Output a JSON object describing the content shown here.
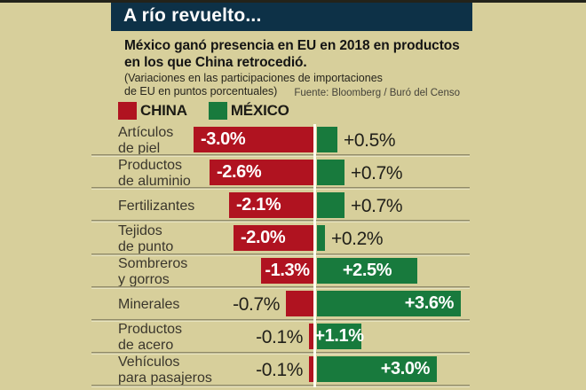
{
  "header": {
    "title": "A río revuelto..."
  },
  "intro": {
    "subtitle": "México ganó presencia en EU en 2018 en productos\nen los que China retrocedió.",
    "note": "(Variaciones en las participaciones de importaciones\nde EU en puntos porcentuales)",
    "source": "Fuente: Bloomberg / Buró del Censo"
  },
  "legend": {
    "items": [
      {
        "label": "CHINA",
        "color": "#b01320"
      },
      {
        "label": "MÉXICO",
        "color": "#187a3d"
      }
    ]
  },
  "colors": {
    "background": "#d7cf9b",
    "header_bar": "#0d3147",
    "china": "#b01320",
    "mexico": "#187a3d",
    "axis_line": "#fdfcee"
  },
  "chart_data": {
    "type": "bar",
    "subtype": "diverging-horizontal",
    "title": "A río revuelto...",
    "unit": "puntos porcentuales",
    "series_names": [
      "CHINA",
      "MÉXICO"
    ],
    "categories": [
      "Artículos de piel",
      "Productos de aluminio",
      "Fertilizantes",
      "Tejidos de punto",
      "Sombreros y gorros",
      "Minerales",
      "Productos de acero",
      "Vehículos para pasajeros"
    ],
    "rows": [
      {
        "category": "Artículos\nde piel",
        "china": -3.0,
        "china_label": "-3.0%",
        "mexico": 0.5,
        "mexico_label": "+0.5%",
        "china_label_pos": "inside-left",
        "mexico_label_pos": "outside"
      },
      {
        "category": "Productos\nde aluminio",
        "china": -2.6,
        "china_label": "-2.6%",
        "mexico": 0.7,
        "mexico_label": "+0.7%",
        "china_label_pos": "inside-left",
        "mexico_label_pos": "outside"
      },
      {
        "category": "Fertilizantes",
        "china": -2.1,
        "china_label": "-2.1%",
        "mexico": 0.7,
        "mexico_label": "+0.7%",
        "china_label_pos": "inside-left",
        "mexico_label_pos": "outside"
      },
      {
        "category": "Tejidos\nde punto",
        "china": -2.0,
        "china_label": "-2.0%",
        "mexico": 0.2,
        "mexico_label": "+0.2%",
        "china_label_pos": "inside-left",
        "mexico_label_pos": "outside"
      },
      {
        "category": "Sombreros\ny gorros",
        "china": -1.3,
        "china_label": "-1.3%",
        "mexico": 2.5,
        "mexico_label": "+2.5%",
        "china_label_pos": "inside-center",
        "mexico_label_pos": "inside-center"
      },
      {
        "category": "Minerales",
        "china": -0.7,
        "china_label": "-0.7%",
        "mexico": 3.6,
        "mexico_label": "+3.6%",
        "china_label_pos": "outside",
        "mexico_label_pos": "inside-right"
      },
      {
        "category": "Productos\nde acero",
        "china": -0.1,
        "china_label": "-0.1%",
        "mexico": 1.1,
        "mexico_label": "+1.1%",
        "china_label_pos": "outside",
        "mexico_label_pos": "inside-center"
      },
      {
        "category": "Vehículos\npara pasajeros",
        "china": -0.1,
        "china_label": "-0.1%",
        "mexico": 3.0,
        "mexico_label": "+3.0%",
        "china_label_pos": "outside",
        "mexico_label_pos": "inside-right"
      }
    ]
  }
}
